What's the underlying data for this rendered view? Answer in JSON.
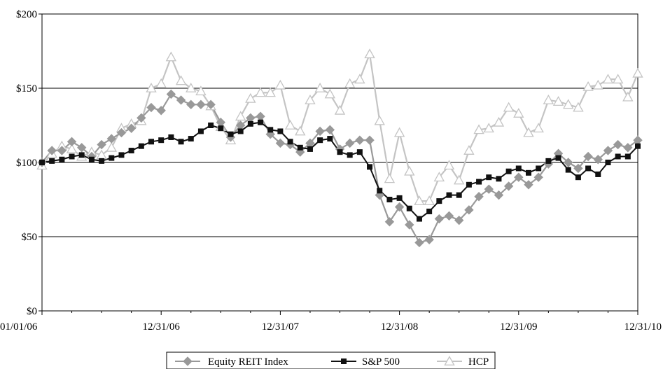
{
  "chart_data": {
    "type": "line",
    "title": "",
    "xlabel": "",
    "ylabel": "",
    "ylim": [
      0,
      200
    ],
    "y_ticks": [
      0,
      50,
      100,
      150,
      200
    ],
    "y_tick_labels": [
      "$0",
      "$50",
      "$100",
      "$150",
      "$200"
    ],
    "x_tick_labels": [
      "01/01/06",
      "12/31/06",
      "12/31/07",
      "12/31/08",
      "12/31/09",
      "12/31/10"
    ],
    "x_tick_positions": [
      0,
      12,
      24,
      36,
      48,
      60
    ],
    "grid": "horizontal",
    "legend_position": "bottom",
    "x": [
      0,
      1,
      2,
      3,
      4,
      5,
      6,
      7,
      8,
      9,
      10,
      11,
      12,
      13,
      14,
      15,
      16,
      17,
      18,
      19,
      20,
      21,
      22,
      23,
      24,
      25,
      26,
      27,
      28,
      29,
      30,
      31,
      32,
      33,
      34,
      35,
      36,
      37,
      38,
      39,
      40,
      41,
      42,
      43,
      44,
      45,
      46,
      47,
      48,
      49,
      50,
      51,
      52,
      53,
      54,
      55,
      56,
      57,
      58,
      59,
      60
    ],
    "series": [
      {
        "name": "Equity REIT Index",
        "color": "#999999",
        "marker": "diamond",
        "values": [
          100,
          108,
          108,
          114,
          110,
          104,
          112,
          116,
          120,
          123,
          130,
          137,
          135,
          146,
          142,
          139,
          139,
          139,
          127,
          117,
          125,
          130,
          131,
          119,
          113,
          112,
          107,
          113,
          121,
          122,
          109,
          113,
          115,
          115,
          78,
          60,
          70,
          58,
          46,
          48,
          62,
          64,
          61,
          68,
          77,
          82,
          78,
          84,
          90,
          85,
          90,
          99,
          106,
          100,
          96,
          104,
          102,
          108,
          112,
          110,
          115
        ]
      },
      {
        "name": "S&P 500",
        "color": "#111111",
        "marker": "square",
        "values": [
          100,
          101,
          102,
          104,
          105,
          102,
          101,
          103,
          105,
          108,
          111,
          114,
          115,
          117,
          114,
          116,
          121,
          125,
          123,
          119,
          121,
          126,
          127,
          122,
          121,
          114,
          110,
          109,
          115,
          116,
          107,
          105,
          107,
          97,
          81,
          75,
          76,
          69,
          62,
          67,
          74,
          78,
          78,
          85,
          87,
          90,
          89,
          94,
          96,
          93,
          96,
          101,
          103,
          95,
          90,
          96,
          92,
          100,
          104,
          104,
          111
        ]
      },
      {
        "name": "HCP",
        "color": "#c4c4c4",
        "marker": "triangle",
        "values": [
          98,
          106,
          111,
          109,
          104,
          107,
          105,
          110,
          123,
          126,
          128,
          150,
          153,
          171,
          155,
          150,
          148,
          138,
          124,
          115,
          131,
          143,
          147,
          147,
          152,
          125,
          121,
          142,
          150,
          146,
          135,
          153,
          156,
          173,
          128,
          89,
          120,
          94,
          74,
          74,
          90,
          98,
          88,
          108,
          122,
          123,
          127,
          137,
          133,
          120,
          123,
          142,
          141,
          139,
          137,
          151,
          152,
          156,
          156,
          144,
          160
        ]
      }
    ]
  }
}
